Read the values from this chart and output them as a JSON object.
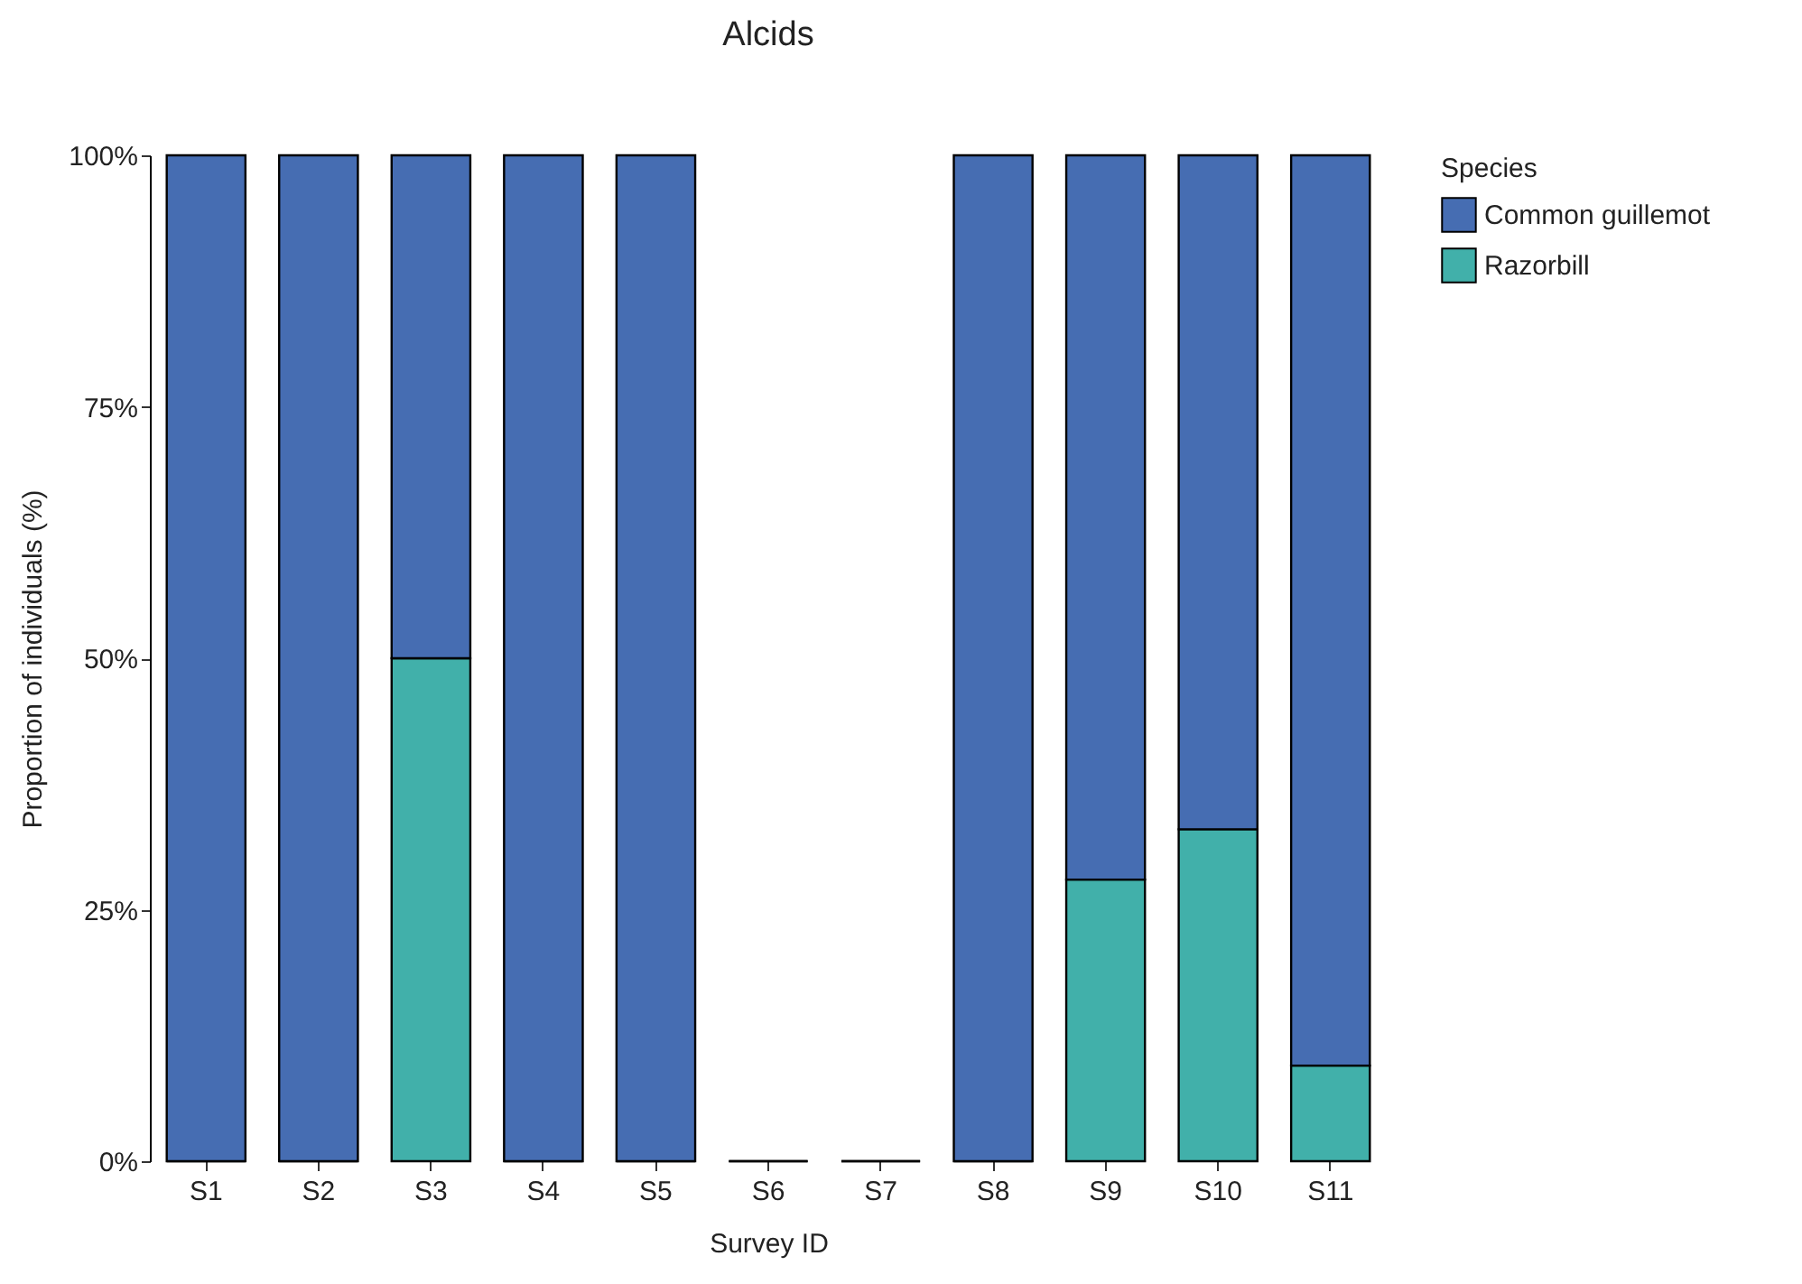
{
  "chart_data": {
    "type": "bar",
    "title": "Alcids",
    "xlabel": "Survey ID",
    "ylabel": "Proportion of individuals (%)",
    "legend_title": "Species",
    "legend": "right",
    "stacked": true,
    "categories": [
      "S1",
      "S2",
      "S3",
      "S4",
      "S5",
      "S6",
      "S7",
      "S8",
      "S9",
      "S10",
      "S11"
    ],
    "series": [
      {
        "name": "Razorbill",
        "color": "#41b0aa",
        "values": [
          0,
          0,
          50,
          0,
          0,
          0,
          0,
          0,
          28,
          33,
          9.5
        ]
      },
      {
        "name": "Common guillemot",
        "color": "#466db2",
        "values": [
          100,
          100,
          50,
          100,
          100,
          0,
          0,
          100,
          72,
          67,
          90.5
        ]
      }
    ],
    "ylim": [
      0,
      100
    ],
    "yticks": [
      {
        "value": 0,
        "label": "0%"
      },
      {
        "value": 25,
        "label": "25%"
      },
      {
        "value": 50,
        "label": "50%"
      },
      {
        "value": 75,
        "label": "75%"
      },
      {
        "value": 100,
        "label": "100%"
      }
    ]
  }
}
